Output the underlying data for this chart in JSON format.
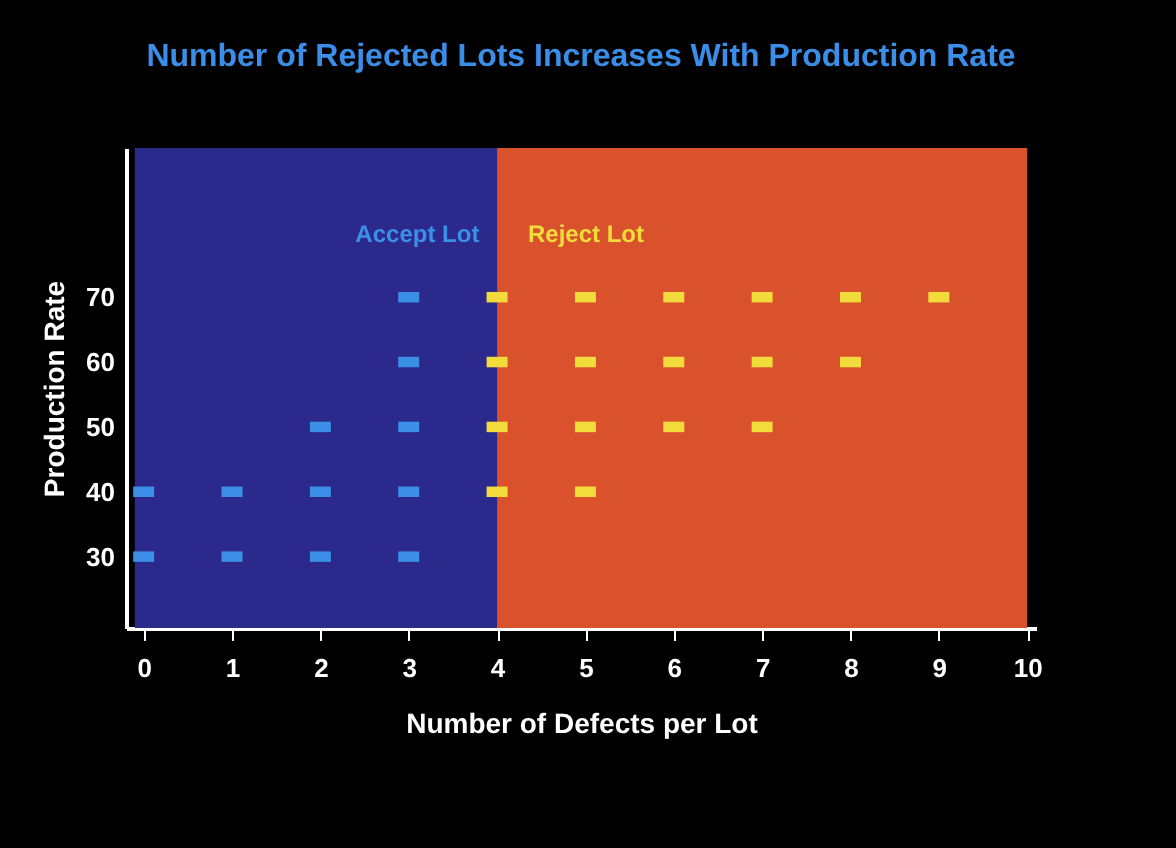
{
  "chart_data": {
    "type": "scatter",
    "title": "Number of Rejected Lots Increases With Production Rate",
    "xlabel": "Number of Defects per Lot",
    "ylabel": "Production Rate",
    "xlim": [
      -0.2,
      10.1
    ],
    "xticks": [
      0,
      1,
      2,
      3,
      4,
      5,
      6,
      7,
      8,
      9,
      10
    ],
    "ylim": [
      19,
      93
    ],
    "yticks": [
      30,
      40,
      50,
      60,
      70
    ],
    "grid": false,
    "marker": "square",
    "bands": [
      {
        "axis": "x",
        "from": -0.1,
        "to": 4,
        "label": "Accept Lot",
        "color": "#2b2a8c"
      },
      {
        "axis": "x",
        "from": 4,
        "to": 10,
        "label": "Reject Lot",
        "color": "#d9522c"
      }
    ],
    "series": [
      {
        "color": "#3b8fe6",
        "x": [
          0,
          0,
          1,
          1,
          2,
          2,
          2,
          3,
          3,
          3,
          3,
          3
        ],
        "values": [
          30,
          40,
          30,
          40,
          30,
          40,
          50,
          30,
          40,
          50,
          60,
          70
        ]
      },
      {
        "color": "#f2dc3c",
        "x": [
          4,
          4,
          4,
          4,
          5,
          5,
          5,
          5,
          6,
          6,
          6,
          7,
          7,
          7,
          8,
          8,
          9
        ],
        "values": [
          40,
          50,
          60,
          70,
          40,
          50,
          60,
          70,
          50,
          60,
          70,
          50,
          60,
          70,
          60,
          70,
          70
        ]
      }
    ]
  }
}
